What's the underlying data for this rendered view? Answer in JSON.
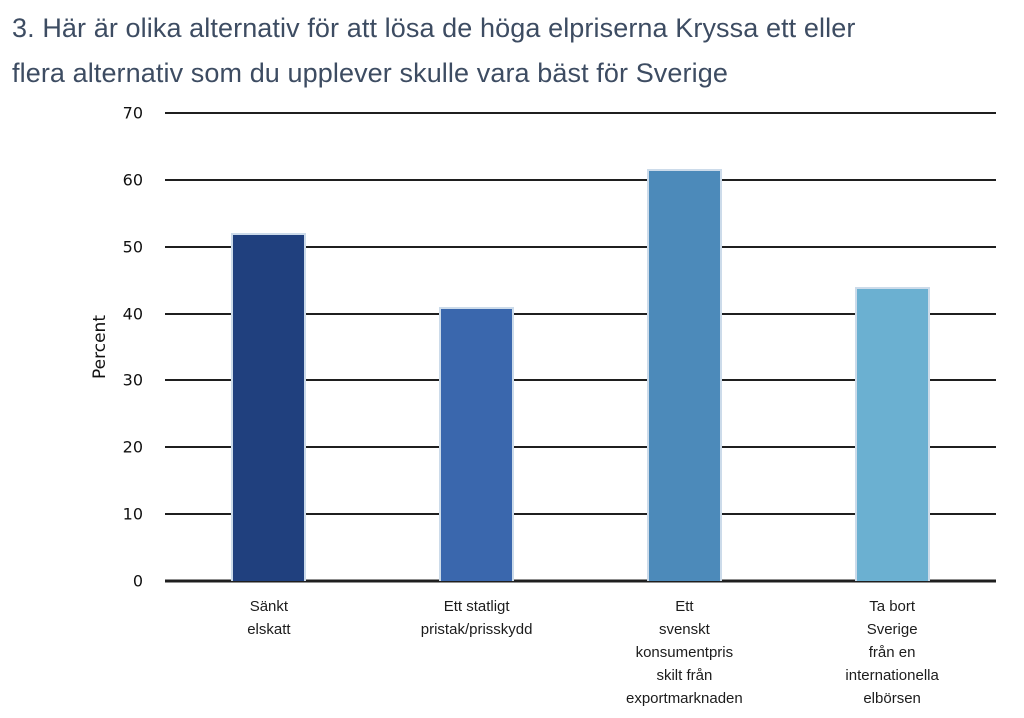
{
  "title": "3. Här är olika alternativ för att lösa de höga elpriserna Kryssa ett eller\nflera alternativ som du upplever skulle vara bäst för Sverige",
  "chart_data": {
    "type": "bar",
    "title": "3. Här är olika alternativ för att lösa de höga elpriserna Kryssa ett eller flera alternativ som du upplever skulle vara bäst för Sverige",
    "categories": [
      "Sänkt\nelskatt",
      "Ett statligt\npristak/prisskydd",
      "Ett\nsvenskt\nkonsumentpris\nskilt från\nexportmarknaden",
      "Ta bort\nSverige\nfrån en\ninternationella\nelbörsen"
    ],
    "values": [
      51.7,
      40.7,
      61.3,
      43.7
    ],
    "bar_colors": [
      "#20407E",
      "#3A67AD",
      "#4C8ABA",
      "#6BB0D1"
    ],
    "xlabel": "",
    "ylabel": "Percent",
    "ylim": [
      0,
      70
    ],
    "yticks": [
      0,
      10,
      20,
      30,
      40,
      50,
      60,
      70
    ],
    "grid": true,
    "legend": false
  },
  "colors": {
    "title_text": "#3d4c62",
    "axis_text": "#111111",
    "gridline": "#1f1f1f",
    "bar_edge": "#ccdbea",
    "background": "#ffffff"
  }
}
